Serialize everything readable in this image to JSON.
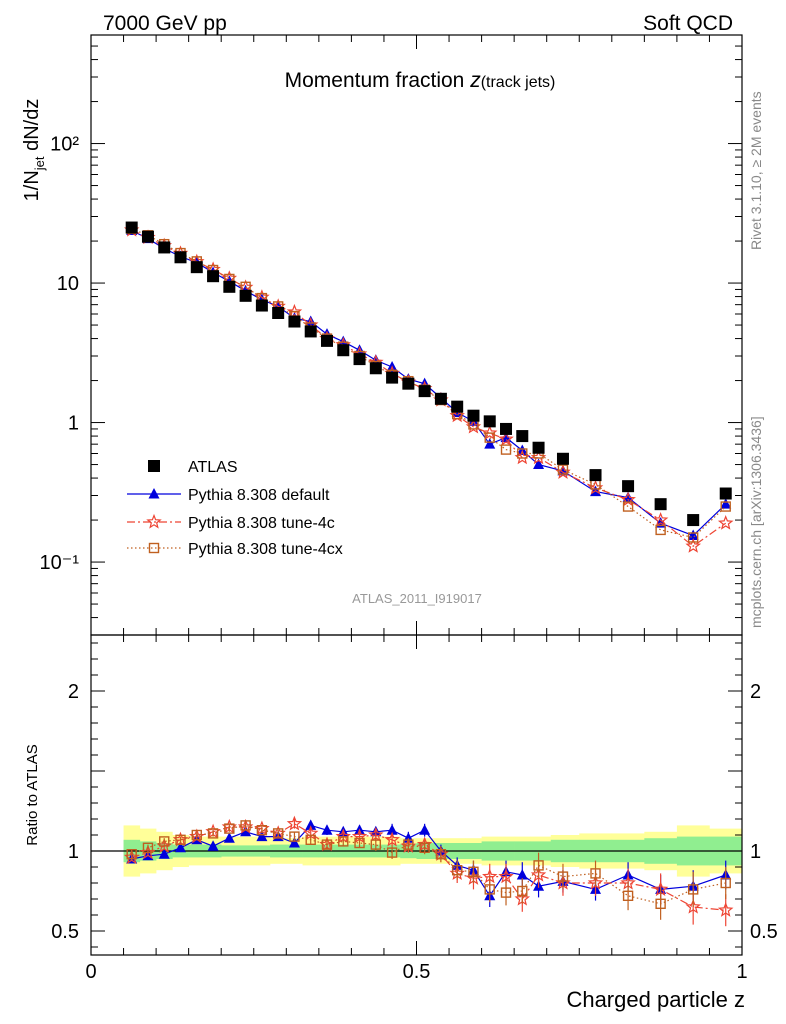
{
  "header": {
    "left": "7000 GeV pp",
    "right": "Soft QCD"
  },
  "side_labels": {
    "upper": "Rivet 3.1.10, ≥ 2M events",
    "lower": "mcplots.cern.ch [arXiv:1306.3436]"
  },
  "analysis_id": "ATLAS_2011_I919017",
  "chart_data": [
    {
      "type": "scatter",
      "title": "Momentum fraction",
      "title_var": "z",
      "title_sub": "(track jets)",
      "xlabel": "Charged particle z",
      "ylabel": "1/N_jet dN/dz",
      "yscale": "log",
      "xlim": [
        0,
        1
      ],
      "ylim": [
        0.03,
        600
      ],
      "ytick_labels": [
        "10⁻¹",
        "1",
        "10",
        "10²"
      ],
      "legend_position": "lower-left",
      "x": [
        0.0625,
        0.0875,
        0.1125,
        0.1375,
        0.1625,
        0.1875,
        0.2125,
        0.2375,
        0.2625,
        0.2875,
        0.3125,
        0.3375,
        0.3625,
        0.3875,
        0.4125,
        0.4375,
        0.4625,
        0.4875,
        0.5125,
        0.5375,
        0.5625,
        0.5875,
        0.6125,
        0.6375,
        0.6625,
        0.6875,
        0.725,
        0.775,
        0.825,
        0.875,
        0.925,
        0.975
      ],
      "series": [
        {
          "name": "ATLAS",
          "color": "#000000",
          "marker": "filled-square",
          "values": [
            25,
            21.5,
            18,
            15.3,
            13,
            11.2,
            9.4,
            8.1,
            6.9,
            6.1,
            5.3,
            4.5,
            3.85,
            3.3,
            2.85,
            2.45,
            2.1,
            1.9,
            1.68,
            1.48,
            1.3,
            1.12,
            1.02,
            0.9,
            0.8,
            0.66,
            0.55,
            0.42,
            0.35,
            0.26,
            0.2,
            0.31
          ]
        },
        {
          "name": "Pythia 8.308 default",
          "color": "#0000dd",
          "marker": "filled-triangle",
          "line": "solid",
          "values": [
            23.8,
            20.8,
            17.7,
            15.5,
            14,
            11.9,
            10.3,
            8.8,
            7.6,
            6.8,
            5.6,
            5.3,
            4.3,
            3.8,
            3.3,
            2.8,
            2.5,
            2.05,
            1.9,
            1.5,
            1.18,
            1.02,
            0.7,
            0.78,
            0.63,
            0.5,
            0.45,
            0.32,
            0.29,
            0.19,
            0.155,
            0.26
          ]
        },
        {
          "name": "Pythia 8.308 tune-4c",
          "color": "#ee4433",
          "marker": "open-star",
          "line": "dash-dot",
          "values": [
            24,
            21.2,
            18.5,
            16.3,
            14.2,
            12.5,
            10.8,
            9.3,
            7.9,
            6.8,
            6.2,
            5.0,
            4.0,
            3.6,
            3.1,
            2.7,
            2.25,
            1.95,
            1.75,
            1.45,
            1.12,
            0.93,
            0.84,
            0.76,
            0.56,
            0.56,
            0.44,
            0.34,
            0.28,
            0.2,
            0.13,
            0.19
          ]
        },
        {
          "name": "Pythia 8.308 tune-4cx",
          "color": "#c06020",
          "marker": "open-square",
          "line": "dotted",
          "values": [
            24.5,
            22,
            19,
            16.4,
            14.3,
            12.4,
            10.7,
            9.4,
            7.8,
            6.8,
            5.8,
            4.8,
            4.0,
            3.5,
            3.0,
            2.55,
            2.2,
            1.98,
            1.72,
            1.45,
            1.15,
            0.97,
            0.78,
            0.64,
            0.6,
            0.6,
            0.46,
            0.36,
            0.25,
            0.17,
            0.15,
            0.25
          ]
        }
      ]
    },
    {
      "type": "scatter",
      "ylabel": "Ratio to ATLAS",
      "xlabel": "Charged particle z",
      "xlim": [
        0,
        1
      ],
      "ylim": [
        0.35,
        2.35
      ],
      "xtick_labels": [
        "0",
        "0.5",
        "1"
      ],
      "ytick_labels": [
        "0.5",
        "1",
        "2"
      ],
      "reference_line": 1,
      "uncertainty_bands": {
        "stat_color": "#90ee90",
        "total_color": "#ffff99",
        "stat_halfwidth": [
          0.07,
          0.06,
          0.05,
          0.04,
          0.04,
          0.04,
          0.035,
          0.035,
          0.035,
          0.04,
          0.04,
          0.04,
          0.04,
          0.04,
          0.04,
          0.04,
          0.04,
          0.045,
          0.05,
          0.05,
          0.05,
          0.05,
          0.06,
          0.06,
          0.06,
          0.06,
          0.07,
          0.07,
          0.07,
          0.08,
          0.09,
          0.09
        ],
        "total_halfwidth": [
          0.16,
          0.14,
          0.12,
          0.1,
          0.09,
          0.09,
          0.09,
          0.09,
          0.09,
          0.08,
          0.08,
          0.09,
          0.09,
          0.09,
          0.09,
          0.09,
          0.09,
          0.08,
          0.08,
          0.08,
          0.08,
          0.08,
          0.09,
          0.09,
          0.09,
          0.09,
          0.1,
          0.11,
          0.11,
          0.12,
          0.16,
          0.14
        ]
      },
      "series": [
        {
          "name": "Pythia 8.308 default",
          "color": "#0000dd",
          "marker": "filled-triangle",
          "line": "solid",
          "values": [
            0.95,
            0.97,
            0.98,
            1.02,
            1.07,
            1.03,
            1.08,
            1.12,
            1.09,
            1.09,
            1.05,
            1.16,
            1.13,
            1.12,
            1.13,
            1.12,
            1.13,
            1.08,
            1.13,
            1.0,
            0.91,
            0.88,
            0.72,
            0.87,
            0.85,
            0.78,
            0.81,
            0.76,
            0.85,
            0.76,
            0.78,
            0.85
          ],
          "errors": [
            0.02,
            0.02,
            0.02,
            0.02,
            0.02,
            0.02,
            0.02,
            0.02,
            0.02,
            0.02,
            0.02,
            0.03,
            0.03,
            0.03,
            0.03,
            0.03,
            0.04,
            0.04,
            0.04,
            0.04,
            0.05,
            0.06,
            0.07,
            0.07,
            0.08,
            0.07,
            0.07,
            0.07,
            0.08,
            0.09,
            0.1,
            0.09
          ]
        },
        {
          "name": "Pythia 8.308 tune-4c",
          "color": "#ee4433",
          "marker": "open-star",
          "line": "dash-dot",
          "values": [
            0.96,
            0.99,
            1.03,
            1.07,
            1.09,
            1.12,
            1.15,
            1.15,
            1.14,
            1.11,
            1.17,
            1.11,
            1.04,
            1.09,
            1.09,
            1.1,
            1.07,
            1.03,
            1.04,
            0.98,
            0.86,
            0.83,
            0.84,
            0.84,
            0.7,
            0.85,
            0.8,
            0.8,
            0.8,
            0.76,
            0.65,
            0.63
          ],
          "errors": [
            0.02,
            0.02,
            0.02,
            0.02,
            0.02,
            0.02,
            0.02,
            0.02,
            0.02,
            0.02,
            0.03,
            0.03,
            0.03,
            0.03,
            0.03,
            0.04,
            0.04,
            0.04,
            0.04,
            0.05,
            0.06,
            0.07,
            0.08,
            0.08,
            0.08,
            0.08,
            0.08,
            0.08,
            0.09,
            0.1,
            0.11,
            0.1
          ]
        },
        {
          "name": "Pythia 8.308 tune-4cx",
          "color": "#c06020",
          "marker": "open-square",
          "line": "dotted",
          "values": [
            0.98,
            1.02,
            1.06,
            1.07,
            1.1,
            1.11,
            1.14,
            1.16,
            1.13,
            1.11,
            1.09,
            1.07,
            1.04,
            1.06,
            1.05,
            1.04,
            0.99,
            1.04,
            1.02,
            0.98,
            0.88,
            0.87,
            0.76,
            0.74,
            0.75,
            0.91,
            0.84,
            0.86,
            0.72,
            0.67,
            0.76,
            0.8
          ],
          "errors": [
            0.02,
            0.02,
            0.02,
            0.02,
            0.02,
            0.02,
            0.02,
            0.02,
            0.02,
            0.02,
            0.03,
            0.03,
            0.03,
            0.03,
            0.03,
            0.04,
            0.04,
            0.04,
            0.04,
            0.05,
            0.06,
            0.07,
            0.08,
            0.08,
            0.08,
            0.08,
            0.08,
            0.08,
            0.09,
            0.1,
            0.11,
            0.1
          ]
        }
      ]
    }
  ]
}
